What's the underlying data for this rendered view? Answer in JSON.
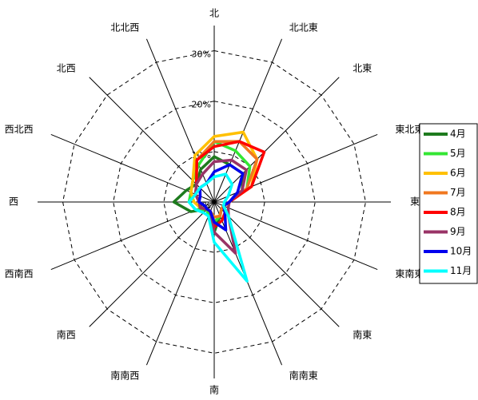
{
  "chart_data": {
    "type": "radar",
    "categories": [
      "北",
      "北北東",
      "北東",
      "東北東",
      "東",
      "東南東",
      "南東",
      "南南東",
      "南",
      "南南西",
      "南西",
      "西南西",
      "西",
      "西北西",
      "北西",
      "北北西"
    ],
    "rlim": [
      0,
      35
    ],
    "rticks": [
      {
        "value": 0,
        "label": "0%"
      },
      {
        "value": 10,
        "label": "10%"
      },
      {
        "value": 20,
        "label": "20%"
      },
      {
        "value": 30,
        "label": "30%"
      }
    ],
    "grid": true,
    "legend": "right",
    "series": [
      {
        "name": "4月",
        "color": "#1e7b1e",
        "values": [
          9,
          8,
          8,
          6,
          3,
          2,
          2,
          3,
          6,
          3,
          2,
          5,
          8,
          6,
          5,
          7
        ]
      },
      {
        "name": "5月",
        "color": "#33e633",
        "values": [
          12,
          11,
          10,
          7,
          3,
          2,
          2,
          3,
          4,
          3,
          2,
          4,
          5,
          5,
          6,
          8
        ]
      },
      {
        "name": "6月",
        "color": "#ffc000",
        "values": [
          13,
          15,
          12,
          8,
          3,
          2,
          2,
          3,
          3,
          2,
          2,
          3,
          4,
          5,
          6,
          10
        ]
      },
      {
        "name": "7月",
        "color": "#f07820",
        "values": [
          12,
          13,
          12,
          7,
          3,
          2,
          2,
          3,
          3,
          2,
          2,
          3,
          3,
          4,
          5,
          9
        ]
      },
      {
        "name": "8月",
        "color": "#ff0000",
        "values": [
          11,
          13,
          14,
          8,
          3,
          2,
          3,
          4,
          5,
          2,
          2,
          3,
          3,
          4,
          5,
          9
        ]
      },
      {
        "name": "9月",
        "color": "#993366",
        "values": [
          8,
          9,
          9,
          6,
          3,
          3,
          4,
          11,
          6,
          2,
          2,
          3,
          3,
          4,
          5,
          6
        ]
      },
      {
        "name": "10月",
        "color": "#0000ee",
        "values": [
          6,
          8,
          8,
          5,
          3,
          2,
          3,
          6,
          4,
          2,
          2,
          2,
          3,
          3,
          4,
          4
        ]
      },
      {
        "name": "11月",
        "color": "#00ffff",
        "values": [
          5,
          6,
          5,
          3,
          2,
          2,
          4,
          17,
          8,
          3,
          3,
          4,
          5,
          4,
          4,
          4
        ]
      }
    ]
  }
}
